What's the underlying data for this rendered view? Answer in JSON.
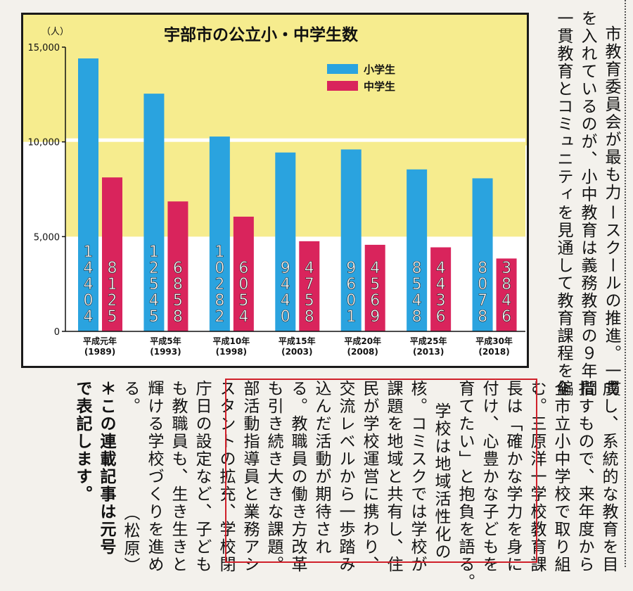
{
  "chart_data": {
    "type": "bar",
    "title": "宇部市の公立小・中学生数",
    "unit": "（人）",
    "y_ticks": [
      "15,000",
      "10,000",
      "5,000",
      "0"
    ],
    "ylim": [
      0,
      15000
    ],
    "categories": [
      {
        "era": "平成元年",
        "year": "(1989)"
      },
      {
        "era": "平成5年",
        "year": "(1993)"
      },
      {
        "era": "平成10年",
        "year": "(1998)"
      },
      {
        "era": "平成15年",
        "year": "(2003)"
      },
      {
        "era": "平成20年",
        "year": "(2008)"
      },
      {
        "era": "平成25年",
        "year": "(2013)"
      },
      {
        "era": "平成30年",
        "year": "(2018)"
      }
    ],
    "series": [
      {
        "name": "小学生",
        "color": "#2aa3df",
        "values": [
          14404,
          12545,
          10282,
          9440,
          9601,
          8548,
          8078
        ]
      },
      {
        "name": "中学生",
        "color": "#d9245c",
        "values": [
          8125,
          6858,
          6054,
          4758,
          4569,
          4436,
          3846
        ]
      }
    ],
    "legend": "top-right",
    "band_color": "#f6ec8e"
  },
  "article": {
    "top_columns": [
      "市教育委員会が最も力",
      "を入れているのが、小中",
      "一貫教育とコミュニティ",
      "ースクールの推進。一貫",
      "教育は義務教育の９年間",
      "を見通して教育課程を編"
    ],
    "bottom_columns": [
      "成し、系統的な教育を目",
      "指すもので、来年度から",
      "全市立小中学校で取り組",
      "む。三原洋一学校教育課",
      "長は「確かな学力を身に",
      "付け、心豊かな子どもを",
      "育てたい」と抱負を語る。",
      "学校は地域活性化の",
      "核。コミスクでは学校が",
      "課題を地域と共有し、住",
      "民が学校運営に携わり、",
      "交流レベルから一歩踏み",
      "込んだ活動が期待され",
      "る。教職員の働き方改革",
      "も引き続き大きな課題。",
      "部活動指導員と業務アシ",
      "スタントの拡充、学校閉",
      "庁日の設定など、子ども",
      "も教職員も、生き生きと",
      "輝ける学校づくりを進め",
      "る。　　　　　　（松原）",
      "＊この連載記事は元号",
      "で表記します。"
    ]
  }
}
